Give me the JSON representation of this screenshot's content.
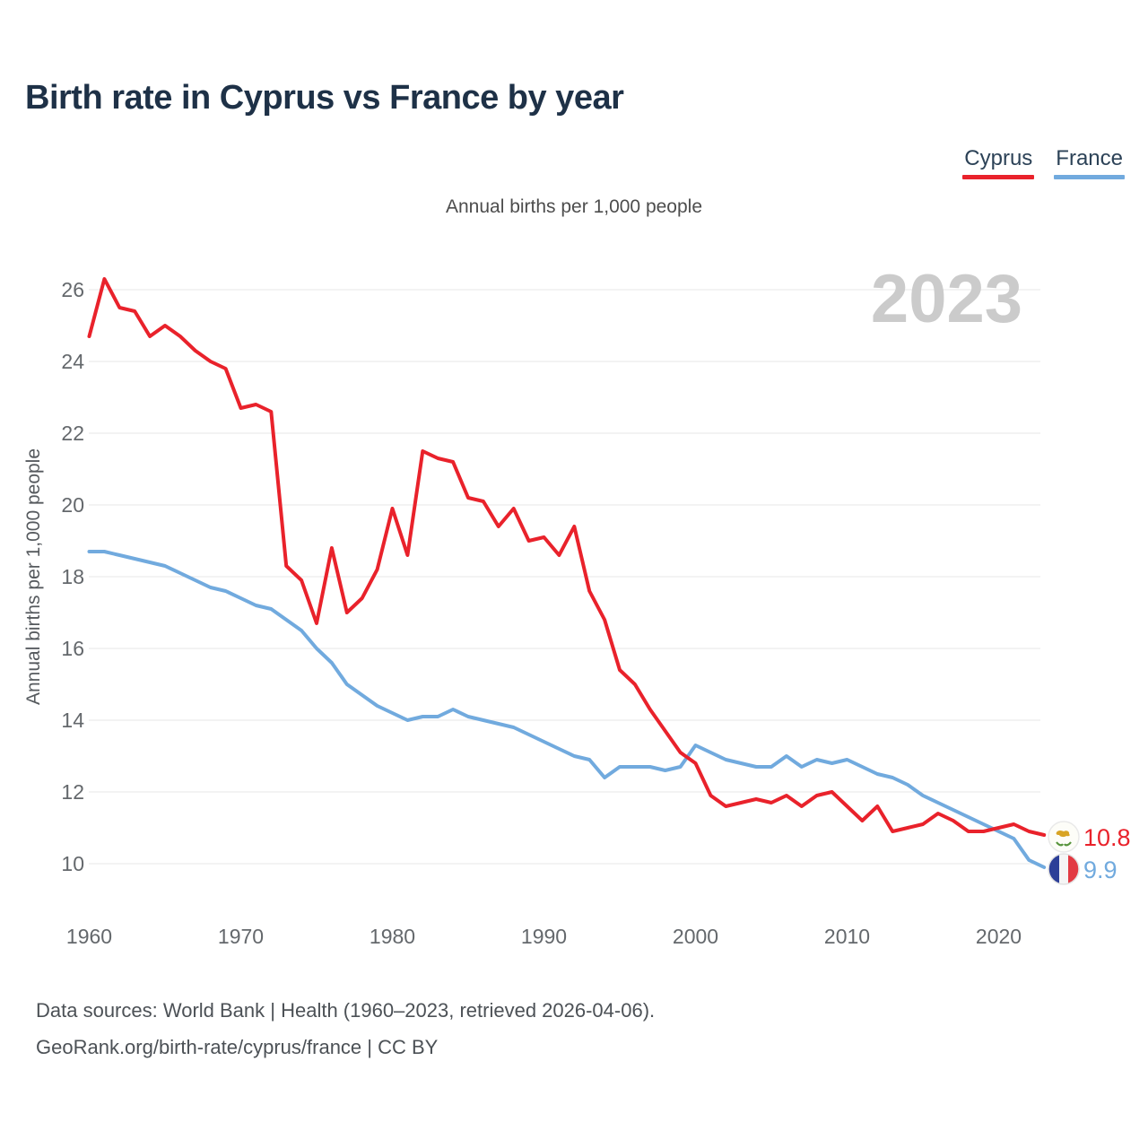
{
  "title": "Birth rate in Cyprus vs France by year",
  "subtitle": "Annual births per 1,000 people",
  "y_axis_title": "Annual births per 1,000 people",
  "watermark": "2023",
  "legend": [
    {
      "label": "Cyprus",
      "color": "#e9222b"
    },
    {
      "label": "France",
      "color": "#71aade"
    }
  ],
  "end_labels": [
    {
      "series": "Cyprus",
      "value": "10.8",
      "color": "#e9222b",
      "flag": "cyprus-flag-icon"
    },
    {
      "series": "France",
      "value": "9.9",
      "color": "#71aade",
      "flag": "france-flag-icon"
    }
  ],
  "footer": {
    "line1": "Data sources: World Bank | Health (1960–2023, retrieved 2026-04-06).",
    "line2": "GeoRank.org/birth-rate/cyprus/france | CC BY"
  },
  "colors": {
    "cyprus_red": "#e9222b",
    "france_blue": "#71aade",
    "title_navy": "#1e3147",
    "watermark_gray": "#cbcbcb",
    "grid_gray": "#e7e7e7"
  },
  "chart_data": {
    "type": "line",
    "title": "Birth rate in Cyprus vs France by year",
    "subtitle": "Annual births per 1,000 people",
    "ylabel": "Annual births per 1,000 people",
    "grid": "horizontal",
    "legend_position": "top-right",
    "xlim": [
      1958,
      2027
    ],
    "ylim": [
      9,
      27
    ],
    "xticks": [
      1960,
      1970,
      1980,
      1990,
      2000,
      2010,
      2020
    ],
    "yticks": [
      10,
      12,
      14,
      16,
      18,
      20,
      22,
      24,
      26
    ],
    "years": [
      1960,
      1961,
      1962,
      1963,
      1964,
      1965,
      1966,
      1967,
      1968,
      1969,
      1970,
      1971,
      1972,
      1973,
      1974,
      1975,
      1976,
      1977,
      1978,
      1979,
      1980,
      1981,
      1982,
      1983,
      1984,
      1985,
      1986,
      1987,
      1988,
      1989,
      1990,
      1991,
      1992,
      1993,
      1994,
      1995,
      1996,
      1997,
      1998,
      1999,
      2000,
      2001,
      2002,
      2003,
      2004,
      2005,
      2006,
      2007,
      2008,
      2009,
      2010,
      2011,
      2012,
      2013,
      2014,
      2015,
      2016,
      2017,
      2018,
      2019,
      2020,
      2021,
      2022,
      2023
    ],
    "series": [
      {
        "name": "Cyprus",
        "color": "#e9222b",
        "values": [
          24.7,
          26.3,
          25.5,
          25.4,
          24.7,
          25.0,
          24.7,
          24.3,
          24.0,
          23.8,
          22.7,
          22.8,
          22.6,
          18.3,
          17.9,
          16.7,
          18.8,
          17.0,
          17.4,
          18.2,
          19.9,
          18.6,
          21.5,
          21.3,
          21.2,
          20.2,
          20.1,
          19.4,
          19.9,
          19.0,
          19.1,
          18.6,
          19.4,
          17.6,
          16.8,
          15.4,
          15.0,
          14.3,
          13.7,
          13.1,
          12.8,
          11.9,
          11.6,
          11.7,
          11.8,
          11.7,
          11.9,
          11.6,
          11.9,
          12.0,
          11.6,
          11.2,
          11.6,
          10.9,
          11.0,
          11.1,
          11.4,
          11.2,
          10.9,
          10.9,
          11.0,
          11.1,
          10.9,
          10.8
        ]
      },
      {
        "name": "France",
        "color": "#71aade",
        "values": [
          18.7,
          18.7,
          18.6,
          18.5,
          18.4,
          18.3,
          18.1,
          17.9,
          17.7,
          17.6,
          17.4,
          17.2,
          17.1,
          16.8,
          16.5,
          16.0,
          15.6,
          15.0,
          14.7,
          14.4,
          14.2,
          14.0,
          14.1,
          14.1,
          14.3,
          14.1,
          14.0,
          13.9,
          13.8,
          13.6,
          13.4,
          13.2,
          13.0,
          12.9,
          12.4,
          12.7,
          12.7,
          12.7,
          12.6,
          12.7,
          13.3,
          13.1,
          12.9,
          12.8,
          12.7,
          12.7,
          13.0,
          12.7,
          12.9,
          12.8,
          12.9,
          12.7,
          12.5,
          12.4,
          12.2,
          11.9,
          11.7,
          11.5,
          11.3,
          11.1,
          10.9,
          10.7,
          10.1,
          9.9
        ]
      }
    ]
  }
}
